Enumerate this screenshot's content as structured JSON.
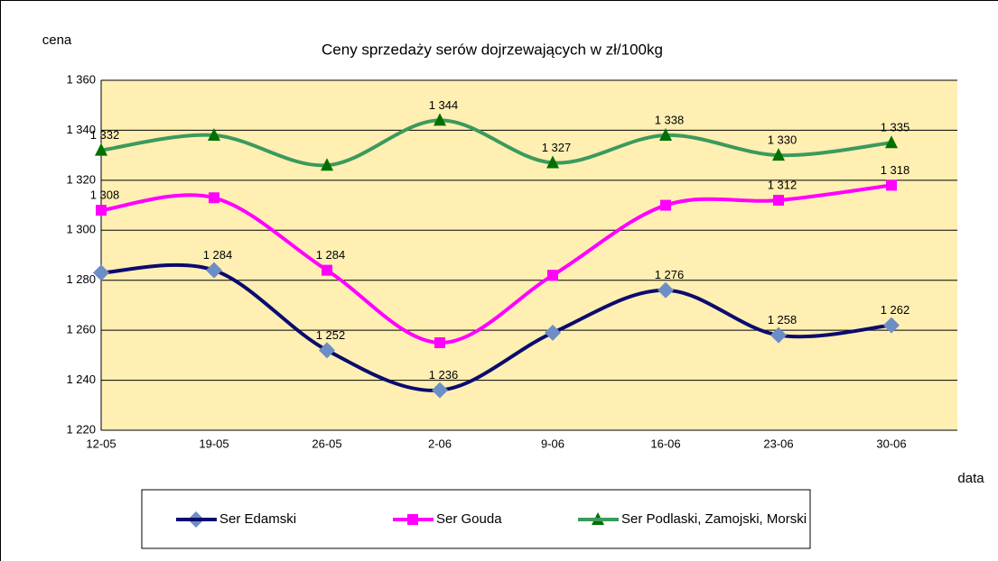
{
  "chart_data": {
    "type": "line",
    "title": "Ceny sprzedaży serów dojrzewających w zł/100kg",
    "y_label": "cena",
    "x_label": "data",
    "categories": [
      "12-05",
      "19-05",
      "26-05",
      "2-06",
      "9-06",
      "16-06",
      "23-06",
      "30-06"
    ],
    "ylim": [
      1220,
      1360
    ],
    "yticks": [
      {
        "value": 1220,
        "label": "1 220"
      },
      {
        "value": 1240,
        "label": "1 240"
      },
      {
        "value": 1260,
        "label": "1 260"
      },
      {
        "value": 1280,
        "label": "1 280"
      },
      {
        "value": 1300,
        "label": "1 300"
      },
      {
        "value": 1320,
        "label": "1 320"
      },
      {
        "value": 1340,
        "label": "1 340"
      },
      {
        "value": 1360,
        "label": "1 360"
      }
    ],
    "grid": true,
    "smooth": true,
    "series": [
      {
        "name": "Ser Edamski",
        "color": "#0b0b6e",
        "marker_color": "#6c8ec6",
        "marker": "diamond",
        "values": [
          1283,
          1284,
          1252,
          1236,
          1259,
          1276,
          1258,
          1262
        ],
        "value_labels": [
          null,
          "1 284",
          "1 252",
          "1 236",
          null,
          "1 276",
          "1 258",
          "1 262"
        ]
      },
      {
        "name": "Ser Gouda",
        "color": "#ff00ff",
        "marker_color": "#ff00ff",
        "marker": "square",
        "values": [
          1308,
          1313,
          1284,
          1255,
          1282,
          1310,
          1312,
          1318
        ],
        "value_labels": [
          "1 308",
          null,
          "1 284",
          null,
          null,
          null,
          "1 312",
          "1 318"
        ]
      },
      {
        "name": "Ser Podlaski, Zamojski, Morski",
        "color": "#3b9a5c",
        "marker_color": "#007000",
        "marker": "triangle",
        "values": [
          1332,
          1338,
          1326,
          1344,
          1327,
          1338,
          1330,
          1335
        ],
        "value_labels": [
          "1 332",
          null,
          null,
          "1 344",
          "1 327",
          "1 338",
          "1 330",
          "1 335"
        ]
      }
    ]
  }
}
